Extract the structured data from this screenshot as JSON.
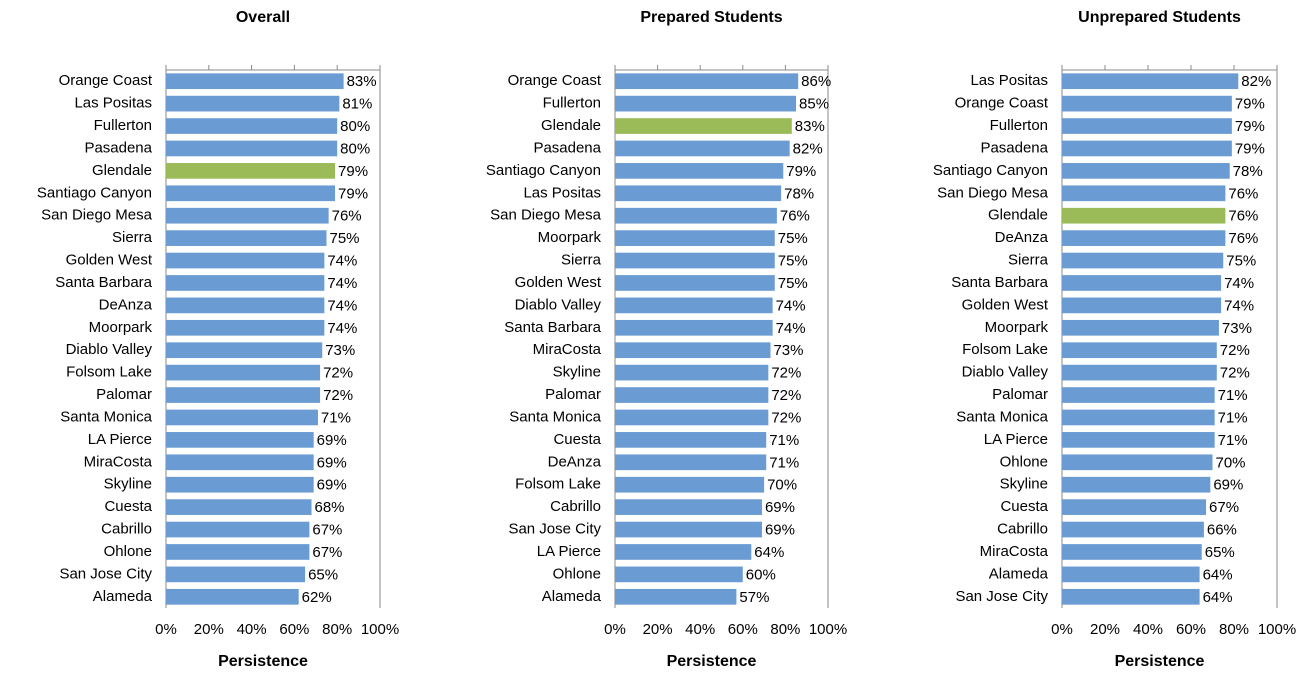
{
  "chart_data": [
    {
      "type": "bar",
      "orientation": "horizontal",
      "title": "Overall",
      "xlabel": "Persistence",
      "categories": [
        "Orange Coast",
        "Las Positas",
        "Fullerton",
        "Pasadena",
        "Glendale",
        "Santiago Canyon",
        "San Diego Mesa",
        "Sierra",
        "Golden West",
        "Santa Barbara",
        "DeAnza",
        "Moorpark",
        "Diablo Valley",
        "Folsom Lake",
        "Palomar",
        "Santa Monica",
        "LA Pierce",
        "MiraCosta",
        "Skyline",
        "Cuesta",
        "Cabrillo",
        "Ohlone",
        "San Jose City",
        "Alameda"
      ],
      "values": [
        83,
        81,
        80,
        80,
        79,
        79,
        76,
        75,
        74,
        74,
        74,
        74,
        73,
        72,
        72,
        71,
        69,
        69,
        69,
        68,
        67,
        67,
        65,
        62
      ],
      "value_labels": [
        "83%",
        "81%",
        "80%",
        "80%",
        "79%",
        "79%",
        "76%",
        "75%",
        "74%",
        "74%",
        "74%",
        "74%",
        "73%",
        "72%",
        "72%",
        "71%",
        "69%",
        "69%",
        "69%",
        "68%",
        "67%",
        "67%",
        "65%",
        "62%"
      ],
      "colors": [
        "#6a9bd3",
        "#6a9bd3",
        "#6a9bd3",
        "#6a9bd3",
        "#9bbb59",
        "#6a9bd3",
        "#6a9bd3",
        "#6a9bd3",
        "#6a9bd3",
        "#6a9bd3",
        "#6a9bd3",
        "#6a9bd3",
        "#6a9bd3",
        "#6a9bd3",
        "#6a9bd3",
        "#6a9bd3",
        "#6a9bd3",
        "#6a9bd3",
        "#6a9bd3",
        "#6a9bd3",
        "#6a9bd3",
        "#6a9bd3",
        "#6a9bd3",
        "#6a9bd3"
      ],
      "xlim": [
        0,
        100
      ],
      "xticks": [
        {
          "value": 0,
          "label": "0%"
        },
        {
          "value": 20,
          "label": "20%"
        },
        {
          "value": 40,
          "label": "40%"
        },
        {
          "value": 60,
          "label": "60%"
        },
        {
          "value": 80,
          "label": "80%"
        },
        {
          "value": 100,
          "label": "100%"
        }
      ]
    },
    {
      "type": "bar",
      "orientation": "horizontal",
      "title": "Prepared Students",
      "xlabel": "Persistence",
      "categories": [
        "Orange Coast",
        "Fullerton",
        "Glendale",
        "Pasadena",
        "Santiago Canyon",
        "Las Positas",
        "San Diego Mesa",
        "Moorpark",
        "Sierra",
        "Golden West",
        "Diablo Valley",
        "Santa Barbara",
        "MiraCosta",
        "Skyline",
        "Palomar",
        "Santa Monica",
        "Cuesta",
        "DeAnza",
        "Folsom Lake",
        "Cabrillo",
        "San Jose City",
        "LA Pierce",
        "Ohlone",
        "Alameda"
      ],
      "values": [
        86,
        85,
        83,
        82,
        79,
        78,
        76,
        75,
        75,
        75,
        74,
        74,
        73,
        72,
        72,
        72,
        71,
        71,
        70,
        69,
        69,
        64,
        60,
        57
      ],
      "value_labels": [
        "86%",
        "85%",
        "83%",
        "82%",
        "79%",
        "78%",
        "76%",
        "75%",
        "75%",
        "75%",
        "74%",
        "74%",
        "73%",
        "72%",
        "72%",
        "72%",
        "71%",
        "71%",
        "70%",
        "69%",
        "69%",
        "64%",
        "60%",
        "57%"
      ],
      "colors": [
        "#6a9bd3",
        "#6a9bd3",
        "#9bbb59",
        "#6a9bd3",
        "#6a9bd3",
        "#6a9bd3",
        "#6a9bd3",
        "#6a9bd3",
        "#6a9bd3",
        "#6a9bd3",
        "#6a9bd3",
        "#6a9bd3",
        "#6a9bd3",
        "#6a9bd3",
        "#6a9bd3",
        "#6a9bd3",
        "#6a9bd3",
        "#6a9bd3",
        "#6a9bd3",
        "#6a9bd3",
        "#6a9bd3",
        "#6a9bd3",
        "#6a9bd3",
        "#6a9bd3"
      ],
      "xlim": [
        0,
        100
      ],
      "xticks": [
        {
          "value": 0,
          "label": "0%"
        },
        {
          "value": 20,
          "label": "20%"
        },
        {
          "value": 40,
          "label": "40%"
        },
        {
          "value": 60,
          "label": "60%"
        },
        {
          "value": 80,
          "label": "80%"
        },
        {
          "value": 100,
          "label": "100%"
        }
      ]
    },
    {
      "type": "bar",
      "orientation": "horizontal",
      "title": "Unprepared Students",
      "xlabel": "Persistence",
      "categories": [
        "Las Positas",
        "Orange Coast",
        "Fullerton",
        "Pasadena",
        "Santiago Canyon",
        "San Diego Mesa",
        "Glendale",
        "DeAnza",
        "Sierra",
        "Santa Barbara",
        "Golden West",
        "Moorpark",
        "Folsom Lake",
        "Diablo Valley",
        "Palomar",
        "Santa Monica",
        "LA Pierce",
        "Ohlone",
        "Skyline",
        "Cuesta",
        "Cabrillo",
        "MiraCosta",
        "Alameda",
        "San Jose City"
      ],
      "values": [
        82,
        79,
        79,
        79,
        78,
        76,
        76,
        76,
        75,
        74,
        74,
        73,
        72,
        72,
        71,
        71,
        71,
        70,
        69,
        67,
        66,
        65,
        64,
        64
      ],
      "value_labels": [
        "82%",
        "79%",
        "79%",
        "79%",
        "78%",
        "76%",
        "76%",
        "76%",
        "75%",
        "74%",
        "74%",
        "73%",
        "72%",
        "72%",
        "71%",
        "71%",
        "71%",
        "70%",
        "69%",
        "67%",
        "66%",
        "65%",
        "64%",
        "64%"
      ],
      "colors": [
        "#6a9bd3",
        "#6a9bd3",
        "#6a9bd3",
        "#6a9bd3",
        "#6a9bd3",
        "#6a9bd3",
        "#9bbb59",
        "#6a9bd3",
        "#6a9bd3",
        "#6a9bd3",
        "#6a9bd3",
        "#6a9bd3",
        "#6a9bd3",
        "#6a9bd3",
        "#6a9bd3",
        "#6a9bd3",
        "#6a9bd3",
        "#6a9bd3",
        "#6a9bd3",
        "#6a9bd3",
        "#6a9bd3",
        "#6a9bd3",
        "#6a9bd3",
        "#6a9bd3"
      ],
      "xlim": [
        0,
        100
      ],
      "xticks": [
        {
          "value": 0,
          "label": "0%"
        },
        {
          "value": 20,
          "label": "20%"
        },
        {
          "value": 40,
          "label": "40%"
        },
        {
          "value": 60,
          "label": "60%"
        },
        {
          "value": 80,
          "label": "80%"
        },
        {
          "value": 100,
          "label": "100%"
        }
      ]
    }
  ]
}
